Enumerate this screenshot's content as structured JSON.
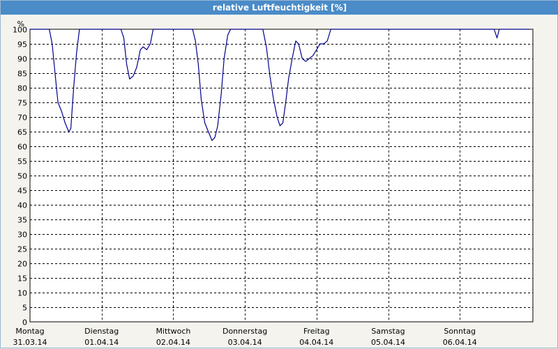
{
  "window": {
    "title": "relative Luftfeuchtigkeit [%]"
  },
  "chart_data": {
    "type": "line",
    "title": "relative Luftfeuchtigkeit [%]",
    "unit_label": "%",
    "ylim": [
      0,
      100
    ],
    "yticks": [
      0,
      5,
      10,
      15,
      20,
      25,
      30,
      35,
      40,
      45,
      50,
      55,
      60,
      65,
      70,
      75,
      80,
      85,
      90,
      95,
      100
    ],
    "xlim": [
      0,
      7
    ],
    "grid": true,
    "x_ticks": [
      {
        "day": "Montag",
        "date": "31.03.14"
      },
      {
        "day": "Dienstag",
        "date": "01.04.14"
      },
      {
        "day": "Mittwoch",
        "date": "02.04.14"
      },
      {
        "day": "Donnerstag",
        "date": "03.04.14"
      },
      {
        "day": "Freitag",
        "date": "04.04.14"
      },
      {
        "day": "Samstag",
        "date": "05.04.14"
      },
      {
        "day": "Sonntag",
        "date": "06.04.14"
      }
    ],
    "series": [
      {
        "color": "#00008B",
        "points": [
          [
            0.0,
            100
          ],
          [
            0.27,
            100
          ],
          [
            0.31,
            95
          ],
          [
            0.35,
            85
          ],
          [
            0.39,
            75
          ],
          [
            0.44,
            72
          ],
          [
            0.49,
            68
          ],
          [
            0.54,
            65
          ],
          [
            0.57,
            66
          ],
          [
            0.61,
            80
          ],
          [
            0.65,
            92
          ],
          [
            0.69,
            100
          ],
          [
            1.0,
            100
          ],
          [
            1.27,
            100
          ],
          [
            1.31,
            97
          ],
          [
            1.35,
            88
          ],
          [
            1.39,
            83
          ],
          [
            1.44,
            84
          ],
          [
            1.49,
            87
          ],
          [
            1.54,
            93
          ],
          [
            1.58,
            94
          ],
          [
            1.63,
            93
          ],
          [
            1.68,
            95
          ],
          [
            1.72,
            100
          ],
          [
            2.0,
            100
          ],
          [
            2.27,
            100
          ],
          [
            2.31,
            96
          ],
          [
            2.35,
            88
          ],
          [
            2.39,
            76
          ],
          [
            2.44,
            68
          ],
          [
            2.49,
            65
          ],
          [
            2.54,
            62
          ],
          [
            2.58,
            63
          ],
          [
            2.62,
            67
          ],
          [
            2.67,
            78
          ],
          [
            2.71,
            90
          ],
          [
            2.76,
            98
          ],
          [
            2.8,
            100
          ],
          [
            3.0,
            100
          ],
          [
            3.25,
            100
          ],
          [
            3.3,
            94
          ],
          [
            3.35,
            84
          ],
          [
            3.4,
            76
          ],
          [
            3.45,
            70
          ],
          [
            3.49,
            67
          ],
          [
            3.53,
            68
          ],
          [
            3.57,
            75
          ],
          [
            3.61,
            83
          ],
          [
            3.66,
            90
          ],
          [
            3.71,
            96
          ],
          [
            3.75,
            95
          ],
          [
            3.8,
            90
          ],
          [
            3.85,
            89
          ],
          [
            3.9,
            90
          ],
          [
            3.95,
            91
          ],
          [
            4.0,
            93
          ],
          [
            4.05,
            95
          ],
          [
            4.1,
            95
          ],
          [
            4.15,
            96
          ],
          [
            4.2,
            100
          ],
          [
            5.0,
            100
          ],
          [
            6.0,
            100
          ],
          [
            6.48,
            100
          ],
          [
            6.52,
            97
          ],
          [
            6.55,
            100
          ],
          [
            6.97,
            100
          ]
        ]
      }
    ]
  }
}
